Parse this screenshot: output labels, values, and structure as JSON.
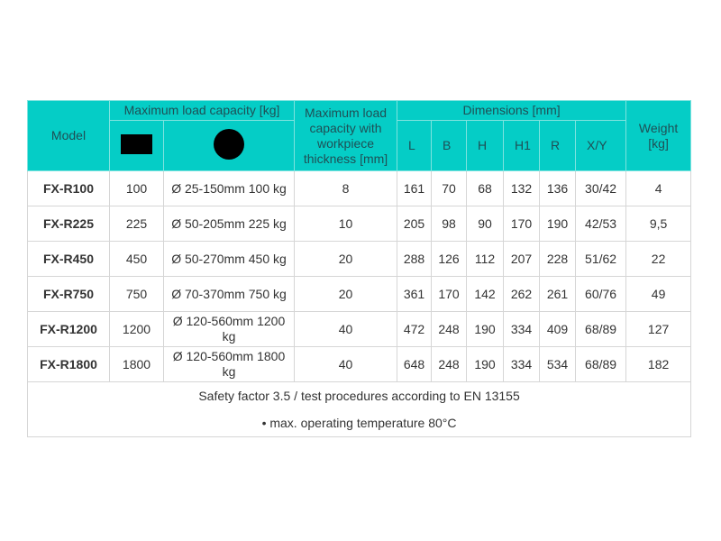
{
  "headers": {
    "model": "Model",
    "max_load": "Maximum load capacity [kg]",
    "max_load_thickness": "Maximum load capacity with workpiece thickness [mm]",
    "dimensions": "Dimensions [mm]",
    "weight": "Weight [kg]",
    "dims": [
      "L",
      "B",
      "H",
      "H1",
      "R",
      "X/Y"
    ],
    "shape_icons": [
      "rectangle-icon",
      "circle-icon"
    ]
  },
  "rows": [
    {
      "model": "FX-R100",
      "rect": "100",
      "round": "Ø 25-150mm 100 kg",
      "thickness": "8",
      "L": "161",
      "B": "70",
      "H": "68",
      "H1": "132",
      "R": "136",
      "XY": "30/42",
      "weight": "4"
    },
    {
      "model": "FX-R225",
      "rect": "225",
      "round": "Ø 50-205mm 225 kg",
      "thickness": "10",
      "L": "205",
      "B": "98",
      "H": "90",
      "H1": "170",
      "R": "190",
      "XY": "42/53",
      "weight": "9,5"
    },
    {
      "model": "FX-R450",
      "rect": "450",
      "round": "Ø 50-270mm 450 kg",
      "thickness": "20",
      "L": "288",
      "B": "126",
      "H": "112",
      "H1": "207",
      "R": "228",
      "XY": "51/62",
      "weight": "22"
    },
    {
      "model": "FX-R750",
      "rect": "750",
      "round": "Ø 70-370mm 750 kg",
      "thickness": "20",
      "L": "361",
      "B": "170",
      "H": "142",
      "H1": "262",
      "R": "261",
      "XY": "60/76",
      "weight": "49"
    },
    {
      "model": "FX-R1200",
      "rect": "1200",
      "round": "Ø 120-560mm 1200 kg",
      "thickness": "40",
      "L": "472",
      "B": "248",
      "H": "190",
      "H1": "334",
      "R": "409",
      "XY": "68/89",
      "weight": "127"
    },
    {
      "model": "FX-R1800",
      "rect": "1800",
      "round": "Ø 120-560mm 1800 kg",
      "thickness": "40",
      "L": "648",
      "B": "248",
      "H": "190",
      "H1": "334",
      "R": "534",
      "XY": "68/89",
      "weight": "182"
    }
  ],
  "footer": {
    "line1": "Safety factor 3.5 / test procedures according to EN 13155",
    "line2": "• max. operating temperature 80°C"
  },
  "colors": {
    "header_bg": "#05cdc6",
    "header_text": "#1f4f55"
  }
}
